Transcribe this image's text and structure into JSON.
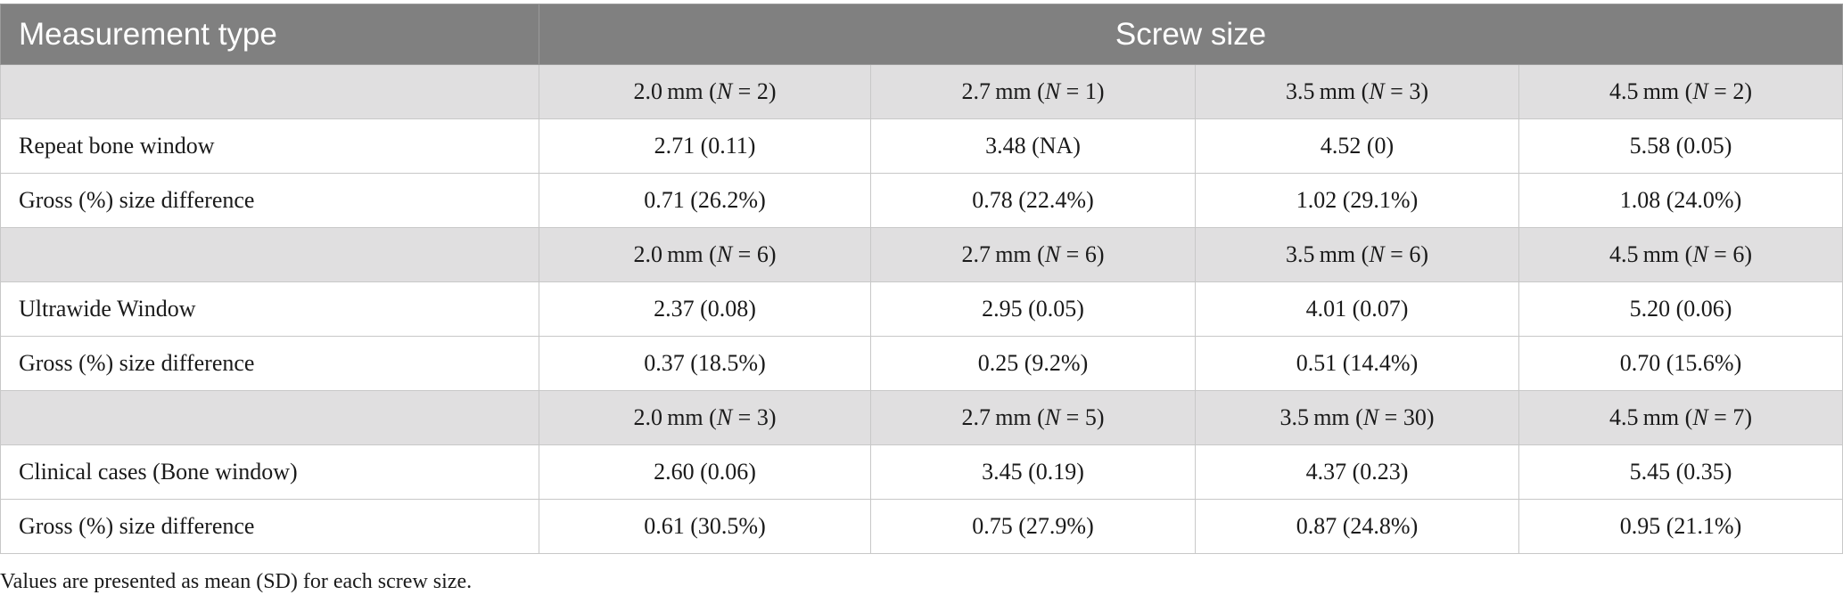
{
  "header": {
    "col0": "Measurement type",
    "col1": "Screw size"
  },
  "groups": [
    {
      "sizes": [
        {
          "size": "2.0 mm",
          "n": "2"
        },
        {
          "size": "2.7 mm",
          "n": "1"
        },
        {
          "size": "3.5 mm",
          "n": "3"
        },
        {
          "size": "4.5 mm",
          "n": "2"
        }
      ],
      "rows": [
        {
          "label": "Repeat bone window",
          "values": [
            "2.71 (0.11)",
            "3.48 (NA)",
            "4.52 (0)",
            "5.58 (0.05)"
          ]
        },
        {
          "label": "Gross (%) size difference",
          "values": [
            "0.71 (26.2%)",
            "0.78 (22.4%)",
            "1.02 (29.1%)",
            "1.08 (24.0%)"
          ]
        }
      ]
    },
    {
      "sizes": [
        {
          "size": "2.0 mm",
          "n": "6"
        },
        {
          "size": "2.7 mm",
          "n": "6"
        },
        {
          "size": "3.5 mm",
          "n": "6"
        },
        {
          "size": "4.5 mm",
          "n": "6"
        }
      ],
      "rows": [
        {
          "label": "Ultrawide Window",
          "values": [
            "2.37 (0.08)",
            "2.95 (0.05)",
            "4.01 (0.07)",
            "5.20 (0.06)"
          ]
        },
        {
          "label": "Gross (%) size difference",
          "values": [
            "0.37 (18.5%)",
            "0.25 (9.2%)",
            "0.51 (14.4%)",
            "0.70 (15.6%)"
          ]
        }
      ]
    },
    {
      "sizes": [
        {
          "size": "2.0 mm",
          "n": "3"
        },
        {
          "size": "2.7 mm",
          "n": "5"
        },
        {
          "size": "3.5 mm",
          "n": "30"
        },
        {
          "size": "4.5 mm",
          "n": "7"
        }
      ],
      "rows": [
        {
          "label": "Clinical cases (Bone window)",
          "values": [
            "2.60 (0.06)",
            "3.45 (0.19)",
            "4.37 (0.23)",
            "5.45 (0.35)"
          ]
        },
        {
          "label": "Gross (%) size difference",
          "values": [
            "0.61 (30.5%)",
            "0.75 (27.9%)",
            "0.87 (24.8%)",
            "0.95 (21.1%)"
          ]
        }
      ]
    }
  ],
  "footnote": "Values are presented as mean (SD) for each screw size."
}
